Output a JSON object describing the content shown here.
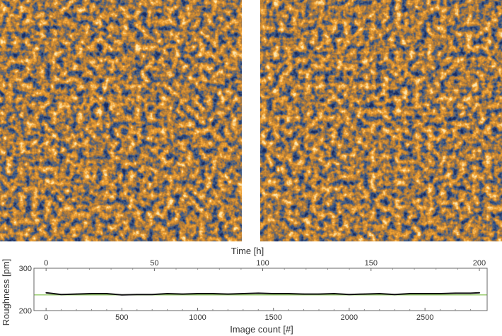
{
  "images": {
    "left_name": "afm-topography-image-1",
    "right_name": "afm-topography-image-2",
    "colormap": [
      "#1a2a5e",
      "#3e5c8a",
      "#b07a38",
      "#f0a030",
      "#fce6b0"
    ]
  },
  "chart_data": {
    "type": "line",
    "title": "",
    "xlabel": "Image count [#]",
    "x2label": "Time [h]",
    "ylabel": "Roughness [pm]",
    "xlim": [
      -80,
      2910
    ],
    "x2lim": [
      -5.6,
      203.6
    ],
    "ylim": [
      200,
      300
    ],
    "xticks": [
      0,
      500,
      1000,
      1500,
      2000,
      2500
    ],
    "x2ticks": [
      0,
      50,
      100,
      150,
      200
    ],
    "yticks": [
      200,
      300
    ],
    "reference_line": {
      "y": 237,
      "color": "#9acd6e"
    },
    "series": [
      {
        "color": "#111111",
        "x": [
          0,
          100,
          200,
          300,
          400,
          500,
          600,
          700,
          800,
          900,
          1000,
          1100,
          1200,
          1300,
          1400,
          1500,
          1600,
          1700,
          1800,
          1900,
          2000,
          2100,
          2200,
          2300,
          2400,
          2500,
          2600,
          2700,
          2800,
          2860
        ],
        "y": [
          242,
          238,
          239,
          240,
          240,
          237,
          238,
          238,
          240,
          239,
          240,
          240,
          239,
          240,
          241,
          240,
          240,
          239,
          239,
          240,
          238,
          239,
          240,
          238,
          240,
          240,
          240,
          241,
          241,
          242
        ]
      }
    ]
  }
}
